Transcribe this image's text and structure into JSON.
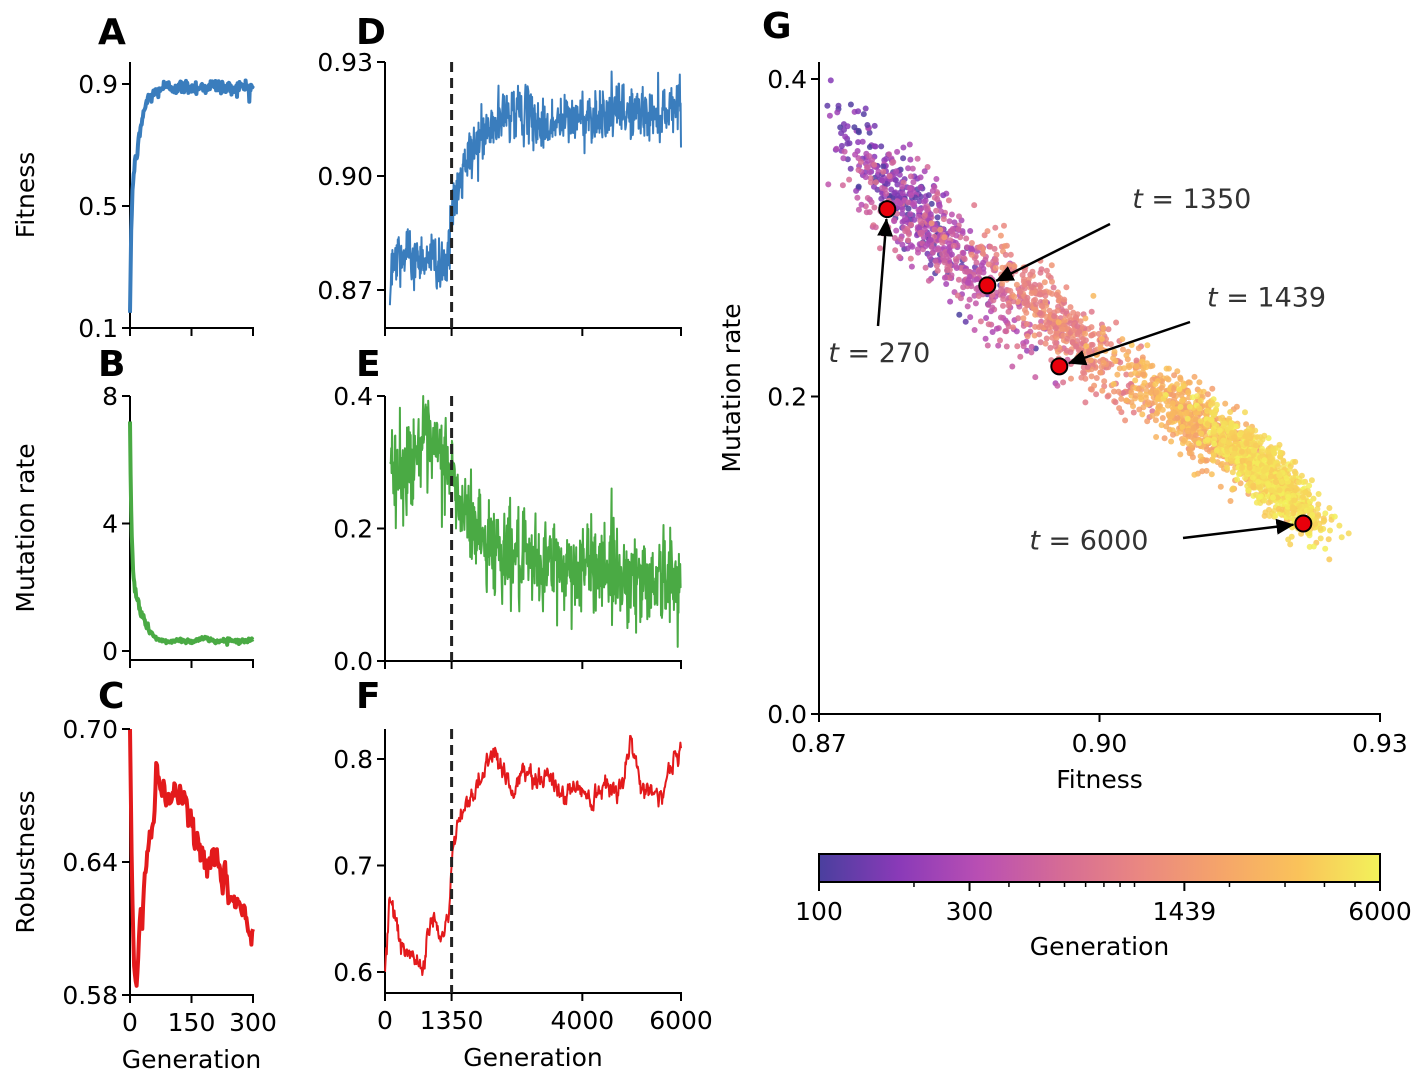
{
  "chart_data": [
    {
      "id": "A",
      "panel_label": "A",
      "type": "line",
      "ylabel": "Fitness",
      "xlabel": "",
      "xlim": [
        0,
        300
      ],
      "ylim": [
        0.1,
        0.95
      ],
      "xticks": [
        0,
        150,
        300
      ],
      "xtick_labels": [
        "",
        "",
        ""
      ],
      "yticks": [
        0.1,
        0.5,
        0.9
      ],
      "ytick_labels": [
        "0.1",
        "0.5",
        "0.9"
      ],
      "color": "#3a7dbd",
      "series": {
        "x": [
          0,
          3,
          6,
          10,
          15,
          20,
          25,
          30,
          40,
          50,
          60,
          70,
          80,
          100,
          120,
          150,
          180,
          210,
          240,
          270,
          300
        ],
        "y": [
          0.15,
          0.42,
          0.55,
          0.62,
          0.66,
          0.7,
          0.74,
          0.79,
          0.84,
          0.86,
          0.87,
          0.88,
          0.89,
          0.89,
          0.89,
          0.89,
          0.89,
          0.895,
          0.885,
          0.89,
          0.89
        ]
      }
    },
    {
      "id": "B",
      "panel_label": "B",
      "type": "line",
      "ylabel": "Mutation rate",
      "xlabel": "",
      "xlim": [
        0,
        300
      ],
      "ylim": [
        -0.3,
        8
      ],
      "xticks": [
        0,
        150,
        300
      ],
      "xtick_labels": [
        "",
        "",
        ""
      ],
      "yticks": [
        0,
        4,
        8
      ],
      "ytick_labels": [
        "0",
        "4",
        "8"
      ],
      "color": "#4aaa44",
      "series": {
        "x": [
          0,
          2,
          5,
          8,
          12,
          16,
          20,
          30,
          40,
          50,
          60,
          70,
          80,
          100,
          120,
          150,
          180,
          210,
          240,
          270,
          300
        ],
        "y": [
          7.2,
          5.0,
          3.2,
          2.4,
          1.9,
          1.7,
          1.5,
          1.1,
          0.8,
          0.6,
          0.45,
          0.35,
          0.3,
          0.3,
          0.35,
          0.3,
          0.4,
          0.3,
          0.35,
          0.3,
          0.35
        ]
      }
    },
    {
      "id": "C",
      "panel_label": "C",
      "type": "line",
      "ylabel": "Robustness",
      "xlabel": "Generation",
      "xlim": [
        0,
        300
      ],
      "ylim": [
        0.58,
        0.7
      ],
      "xticks": [
        0,
        150,
        300
      ],
      "xtick_labels": [
        "0",
        "150",
        "300"
      ],
      "yticks": [
        0.58,
        0.64,
        0.7
      ],
      "ytick_labels": [
        "0.58",
        "0.64",
        "0.70"
      ],
      "color": "#e31a1c",
      "series": {
        "x": [
          0,
          5,
          10,
          15,
          20,
          25,
          30,
          35,
          40,
          50,
          60,
          65,
          70,
          80,
          90,
          100,
          110,
          120,
          130,
          140,
          150,
          170,
          190,
          210,
          230,
          250,
          270,
          285,
          295,
          300
        ],
        "y": [
          0.7,
          0.63,
          0.596,
          0.59,
          0.6,
          0.615,
          0.605,
          0.625,
          0.635,
          0.65,
          0.675,
          0.685,
          0.68,
          0.67,
          0.66,
          0.67,
          0.675,
          0.665,
          0.67,
          0.665,
          0.655,
          0.645,
          0.64,
          0.636,
          0.63,
          0.624,
          0.62,
          0.61,
          0.605,
          0.615
        ]
      }
    },
    {
      "id": "D",
      "panel_label": "D",
      "type": "line",
      "ylabel": "",
      "xlabel": "",
      "xlim": [
        0,
        6000
      ],
      "ylim": [
        0.865,
        0.93
      ],
      "xticks": [
        0,
        1350,
        4000,
        6000
      ],
      "xtick_labels": [
        "",
        "",
        "",
        ""
      ],
      "yticks": [
        0.87,
        0.9,
        0.93
      ],
      "ytick_labels": [
        "0.87",
        "0.90",
        "0.93"
      ],
      "vline": 1350,
      "color": "#3a7dbd",
      "series": {
        "x": [
          100,
          150,
          250,
          400,
          600,
          800,
          1000,
          1200,
          1300,
          1350,
          1450,
          1600,
          1800,
          2000,
          2300,
          2600,
          2900,
          3200,
          3500,
          3800,
          4200,
          4600,
          5000,
          5400,
          5800,
          6000
        ],
        "y": [
          0.866,
          0.881,
          0.88,
          0.879,
          0.878,
          0.879,
          0.878,
          0.877,
          0.879,
          0.89,
          0.895,
          0.902,
          0.907,
          0.911,
          0.914,
          0.918,
          0.916,
          0.913,
          0.914,
          0.915,
          0.916,
          0.917,
          0.917,
          0.916,
          0.918,
          0.921
        ]
      }
    },
    {
      "id": "E",
      "panel_label": "E",
      "type": "line",
      "ylabel": "",
      "xlabel": "",
      "xlim": [
        0,
        6000
      ],
      "ylim": [
        0.0,
        0.4
      ],
      "xticks": [
        0,
        1350,
        4000,
        6000
      ],
      "xtick_labels": [
        "",
        "",
        "",
        ""
      ],
      "yticks": [
        0.0,
        0.2,
        0.4
      ],
      "ytick_labels": [
        "0.0",
        "0.2",
        "0.4"
      ],
      "vline": 1350,
      "color": "#4aaa44",
      "series": {
        "x": [
          100,
          300,
          500,
          700,
          900,
          1100,
          1300,
          1450,
          1600,
          1800,
          2000,
          2300,
          2600,
          2900,
          3200,
          3600,
          4000,
          4400,
          4800,
          5200,
          5600,
          6000
        ],
        "y": [
          0.3,
          0.28,
          0.3,
          0.33,
          0.32,
          0.31,
          0.3,
          0.25,
          0.22,
          0.21,
          0.18,
          0.17,
          0.16,
          0.14,
          0.15,
          0.14,
          0.14,
          0.15,
          0.13,
          0.12,
          0.13,
          0.11
        ]
      }
    },
    {
      "id": "F",
      "panel_label": "F",
      "type": "line",
      "ylabel": "",
      "xlabel": "Generation",
      "xlim": [
        0,
        6000
      ],
      "ylim": [
        0.58,
        0.83
      ],
      "xticks": [
        0,
        1350,
        4000,
        6000
      ],
      "xtick_labels": [
        "0",
        "1350",
        "4000",
        "6000"
      ],
      "yticks": [
        0.6,
        0.7,
        0.8
      ],
      "ytick_labels": [
        "0.6",
        "0.7",
        "0.8"
      ],
      "vline": 1350,
      "color": "#e31a1c",
      "series": {
        "x": [
          0,
          80,
          150,
          250,
          400,
          600,
          800,
          900,
          1000,
          1100,
          1200,
          1300,
          1350,
          1450,
          1600,
          1800,
          2000,
          2200,
          2400,
          2600,
          2800,
          3000,
          3300,
          3600,
          3900,
          4200,
          4500,
          4800,
          5000,
          5200,
          5400,
          5600,
          5800,
          6000
        ],
        "y": [
          0.6,
          0.675,
          0.66,
          0.64,
          0.615,
          0.61,
          0.615,
          0.64,
          0.655,
          0.63,
          0.635,
          0.655,
          0.7,
          0.735,
          0.75,
          0.77,
          0.79,
          0.81,
          0.79,
          0.77,
          0.785,
          0.785,
          0.785,
          0.765,
          0.775,
          0.765,
          0.78,
          0.775,
          0.815,
          0.77,
          0.775,
          0.765,
          0.795,
          0.805
        ]
      }
    },
    {
      "id": "G",
      "panel_label": "G",
      "type": "scatter",
      "xlabel": "Fitness",
      "ylabel": "Mutation rate",
      "xlim": [
        0.87,
        0.93
      ],
      "ylim": [
        0.0,
        0.405
      ],
      "xticks": [
        0.87,
        0.9,
        0.93
      ],
      "xtick_labels": [
        "0.87",
        "0.90",
        "0.93"
      ],
      "yticks": [
        0.0,
        0.2,
        0.4
      ],
      "ytick_labels": [
        "0.0",
        "0.2",
        "0.4"
      ],
      "colormap": "plasma (log scale)",
      "colorbar": {
        "label": "Generation",
        "range": [
          100,
          6000
        ],
        "ticks": [
          100,
          300,
          1439,
          6000
        ],
        "tick_labels": [
          "100",
          "300",
          "1439",
          "6000"
        ],
        "colors": [
          "#4a3f9e",
          "#8a3ab8",
          "#b94fb3",
          "#d56b96",
          "#ea8781",
          "#f5a46a",
          "#fac35a",
          "#f2f25a"
        ]
      },
      "cloud": [
        {
          "gen_range": [
            100,
            300
          ],
          "center": [
            0.879,
            0.325
          ],
          "spread": [
            0.0035,
            0.025
          ],
          "count": 260
        },
        {
          "gen_range": [
            250,
            700
          ],
          "center": [
            0.884,
            0.29
          ],
          "spread": [
            0.005,
            0.03
          ],
          "count": 420
        },
        {
          "gen_range": [
            700,
            1600
          ],
          "center": [
            0.896,
            0.245
          ],
          "spread": [
            0.004,
            0.025
          ],
          "count": 420
        },
        {
          "gen_range": [
            1600,
            3500
          ],
          "center": [
            0.91,
            0.185
          ],
          "spread": [
            0.004,
            0.02
          ],
          "count": 600
        },
        {
          "gen_range": [
            3500,
            6000
          ],
          "center": [
            0.918,
            0.15
          ],
          "spread": [
            0.003,
            0.018
          ],
          "count": 900
        }
      ],
      "highlighted": [
        {
          "label": "t = 270",
          "t": 270,
          "fitness": 0.8773,
          "mutation_rate": 0.318,
          "text_pos": [
            0.871,
            0.228
          ]
        },
        {
          "label": "t = 1350",
          "t": 1350,
          "fitness": 0.888,
          "mutation_rate": 0.27,
          "text_pos": [
            0.9035,
            0.325
          ]
        },
        {
          "label": "t = 1439",
          "t": 1439,
          "fitness": 0.8957,
          "mutation_rate": 0.219,
          "text_pos": [
            0.9115,
            0.263
          ]
        },
        {
          "label": "t = 6000",
          "t": 6000,
          "fitness": 0.9218,
          "mutation_rate": 0.12,
          "text_pos": [
            0.8925,
            0.11
          ]
        }
      ],
      "marker_color": "#e8000b"
    }
  ]
}
